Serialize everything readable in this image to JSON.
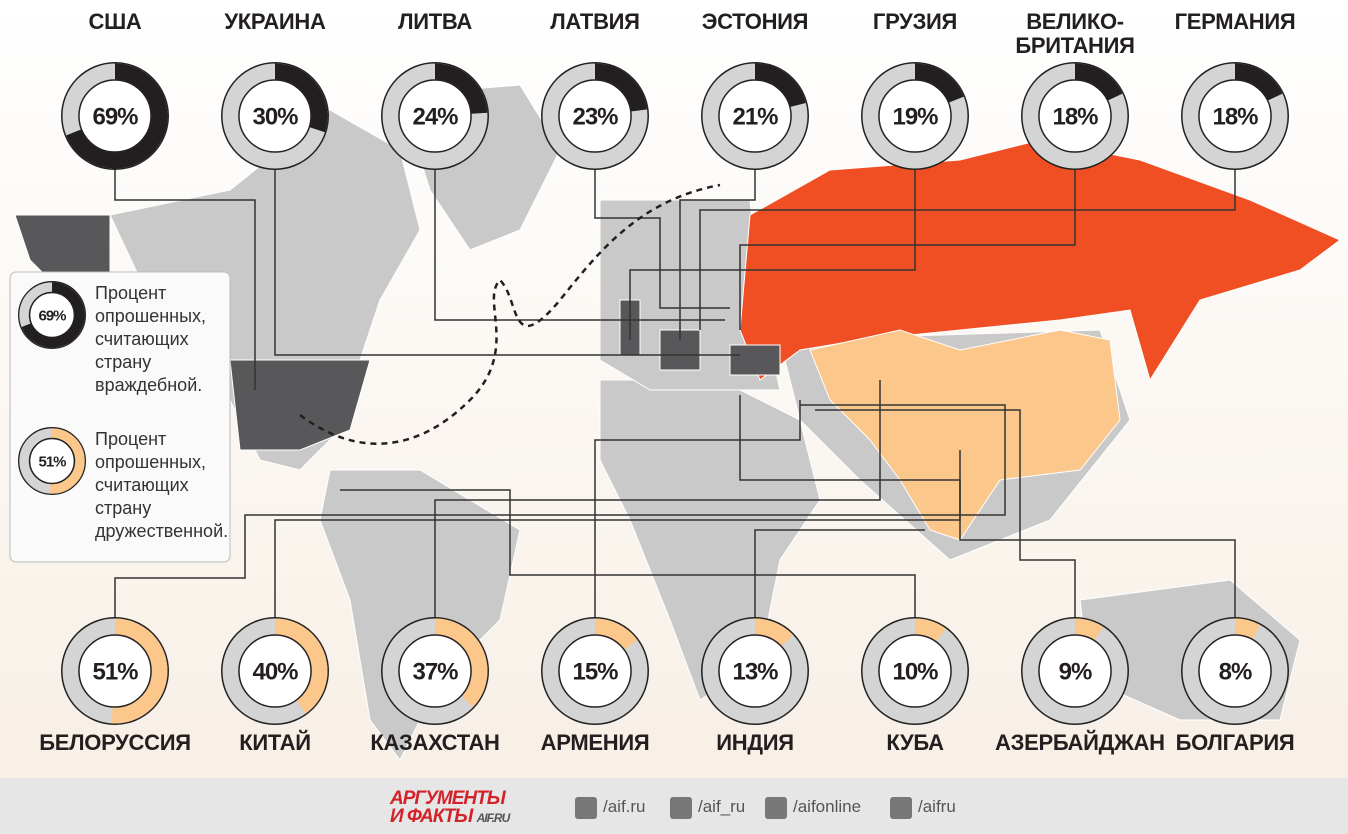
{
  "hostile": {
    "color": "#231f20",
    "items": [
      {
        "name": "США",
        "value": 69,
        "label": "69%"
      },
      {
        "name": "УКРАИНА",
        "value": 30,
        "label": "30%"
      },
      {
        "name": "ЛИТВА",
        "value": 24,
        "label": "24%"
      },
      {
        "name": "ЛАТВИЯ",
        "value": 23,
        "label": "23%"
      },
      {
        "name": "ЭСТОНИЯ",
        "value": 21,
        "label": "21%"
      },
      {
        "name": "ГРУЗИЯ",
        "value": 19,
        "label": "19%"
      },
      {
        "name": "ВЕЛИКО-БРИТАНИЯ",
        "value": 18,
        "label": "18%"
      },
      {
        "name": "ГЕРМАНИЯ",
        "value": 18,
        "label": "18%"
      }
    ]
  },
  "friendly": {
    "color": "#fbc78a",
    "items": [
      {
        "name": "БЕЛОРУССИЯ",
        "value": 51,
        "label": "51%"
      },
      {
        "name": "КИТАЙ",
        "value": 40,
        "label": "40%"
      },
      {
        "name": "КАЗАХСТАН",
        "value": 37,
        "label": "37%"
      },
      {
        "name": "АРМЕНИЯ",
        "value": 15,
        "label": "15%"
      },
      {
        "name": "ИНДИЯ",
        "value": 13,
        "label": "13%"
      },
      {
        "name": "КУБА",
        "value": 10,
        "label": "10%"
      },
      {
        "name": "АЗЕРБАЙДЖАН",
        "value": 9,
        "label": "9%"
      },
      {
        "name": "БОЛГАРИЯ",
        "value": 8,
        "label": "8%"
      }
    ]
  },
  "legend": [
    {
      "text": "Процент опрошенных, считающих страну враждебной.",
      "value": 69,
      "label": "69%"
    },
    {
      "text": "Процент опрошенных, считающих страну дружественной.",
      "value": 51,
      "label": "51%"
    }
  ],
  "footer": {
    "logo_top": "АРГУМЕНТЫ",
    "logo_bottom": "И ФАКТЫ",
    "site": "AIF.RU",
    "social": [
      "/aif.ru",
      "/aif_ru",
      "/aifonline",
      "/aifru"
    ]
  }
}
